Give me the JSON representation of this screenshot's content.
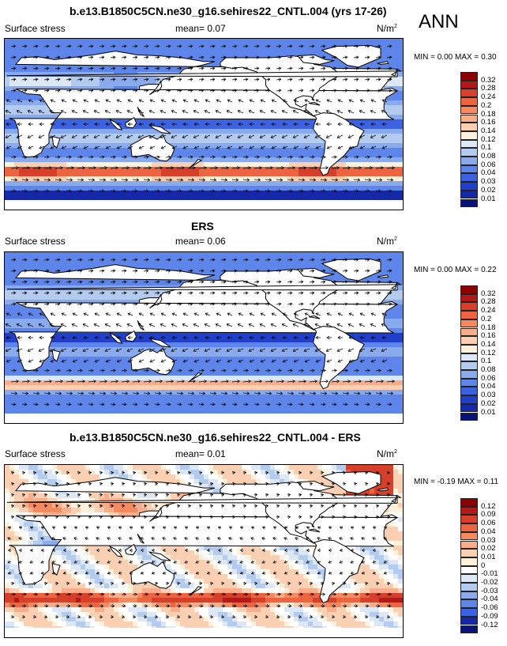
{
  "season": "ANN",
  "panels": [
    {
      "title": "b.e13.B1850C5CN.ne30_g16.sehires22_CNTL.004 (yrs 17-26)",
      "variable": "Surface stress",
      "mean_label": "mean=",
      "mean_value": "0.07",
      "units_base": "N/m",
      "units_exp": "2",
      "min_label": "MIN =",
      "min_value": "0.00",
      "max_label": "MAX =",
      "max_value": "0.30"
    },
    {
      "title": "ERS",
      "variable": "Surface stress",
      "mean_label": "mean=",
      "mean_value": "0.06",
      "units_base": "N/m",
      "units_exp": "2",
      "min_label": "MIN =",
      "min_value": "0.00",
      "max_label": "MAX =",
      "max_value": "0.22"
    },
    {
      "title": "b.e13.B1850C5CN.ne30_g16.sehires22_CNTL.004 - ERS",
      "variable": "Surface stress",
      "mean_label": "mean=",
      "mean_value": "0.01",
      "units_base": "N/m",
      "units_exp": "2",
      "min_label": "MIN =",
      "min_value": "-0.19",
      "max_label": "MAX =",
      "max_value": "0.11"
    }
  ],
  "colorbars": [
    {
      "labels": [
        "0.32",
        "0.28",
        "0.24",
        "0.2",
        "0.18",
        "0.16",
        "0.14",
        "0.12",
        "0.1",
        "0.08",
        "0.06",
        "0.04",
        "0.03",
        "0.02",
        "0.01"
      ],
      "colors": [
        "#8b0000",
        "#b21a1a",
        "#d6402a",
        "#ec6440",
        "#f58a60",
        "#f9ad8a",
        "#fbcfb2",
        "#fdf1dc",
        "#dde8f6",
        "#b4cbf0",
        "#8aaaee",
        "#5e86ea",
        "#3b62e0",
        "#2040cc",
        "#1428a8",
        "#0a1478"
      ]
    },
    {
      "labels": [
        "0.32",
        "0.28",
        "0.24",
        "0.2",
        "0.18",
        "0.16",
        "0.14",
        "0.12",
        "0.1",
        "0.08",
        "0.06",
        "0.04",
        "0.03",
        "0.02",
        "0.01"
      ],
      "colors": [
        "#8b0000",
        "#b21a1a",
        "#d6402a",
        "#ec6440",
        "#f58a60",
        "#f9ad8a",
        "#fbcfb2",
        "#fdf1dc",
        "#dde8f6",
        "#b4cbf0",
        "#8aaaee",
        "#5e86ea",
        "#3b62e0",
        "#2040cc",
        "#1428a8",
        "#0a1478"
      ]
    },
    {
      "labels": [
        "0.12",
        "0.09",
        "0.06",
        "0.04",
        "0.03",
        "0.02",
        "0.01",
        "0",
        "-0.01",
        "-0.02",
        "-0.03",
        "-0.04",
        "-0.06",
        "-0.09",
        "-0.12"
      ],
      "colors": [
        "#8b0000",
        "#b21a1a",
        "#d6402a",
        "#ec6440",
        "#f58a60",
        "#f9ad8a",
        "#fbcfb2",
        "#fdf1dc",
        "#ffffff",
        "#dde8f6",
        "#b4cbf0",
        "#8aaaee",
        "#5e86ea",
        "#3b62e0",
        "#1428a8",
        "#0a1478"
      ]
    }
  ],
  "colors": {
    "land": "#ffffff",
    "ocean_mid": "#3b62e0",
    "westerlies": "#e0502e",
    "diff_bg": "#dde8f6",
    "coastline": "#000000",
    "arrow": "#000000"
  }
}
